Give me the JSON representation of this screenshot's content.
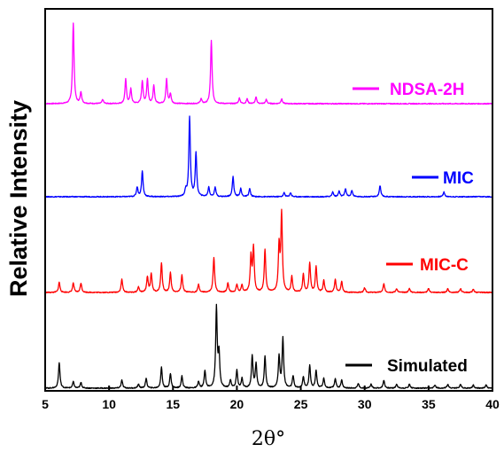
{
  "chart_data": {
    "type": "line",
    "xlabel": "2θ°",
    "ylabel": "Relative Intensity",
    "xlim": [
      5,
      40
    ],
    "x_ticks": [
      "5",
      "10",
      "15",
      "20",
      "25",
      "30",
      "35",
      "40"
    ],
    "y_ticks_shown": false,
    "grid": false,
    "legend": "right, beside each trace",
    "series": [
      {
        "name": "NDSA-2H",
        "color": "#ff00ff",
        "peaks": [
          [
            7.2,
            1.0
          ],
          [
            7.8,
            0.14
          ],
          [
            9.5,
            0.05
          ],
          [
            11.3,
            0.3
          ],
          [
            11.7,
            0.18
          ],
          [
            12.6,
            0.28
          ],
          [
            13.0,
            0.3
          ],
          [
            13.5,
            0.22
          ],
          [
            14.5,
            0.3
          ],
          [
            14.8,
            0.12
          ],
          [
            17.2,
            0.06
          ],
          [
            18.0,
            0.78
          ],
          [
            20.2,
            0.07
          ],
          [
            20.8,
            0.06
          ],
          [
            21.5,
            0.08
          ],
          [
            22.3,
            0.05
          ],
          [
            23.5,
            0.06
          ]
        ]
      },
      {
        "name": "MIC",
        "color": "#0000ff",
        "peaks": [
          [
            12.2,
            0.12
          ],
          [
            12.6,
            0.32
          ],
          [
            16.0,
            0.08
          ],
          [
            16.3,
            1.0
          ],
          [
            16.8,
            0.55
          ],
          [
            17.8,
            0.12
          ],
          [
            18.3,
            0.12
          ],
          [
            19.7,
            0.25
          ],
          [
            20.3,
            0.1
          ],
          [
            21.0,
            0.1
          ],
          [
            23.7,
            0.05
          ],
          [
            24.2,
            0.05
          ],
          [
            27.5,
            0.06
          ],
          [
            28.0,
            0.07
          ],
          [
            28.5,
            0.1
          ],
          [
            29.0,
            0.08
          ],
          [
            31.2,
            0.14
          ],
          [
            36.2,
            0.06
          ]
        ]
      },
      {
        "name": "MIC-C",
        "color": "#ff0000",
        "peaks": [
          [
            6.1,
            0.13
          ],
          [
            7.2,
            0.12
          ],
          [
            7.8,
            0.12
          ],
          [
            11.0,
            0.17
          ],
          [
            12.3,
            0.07
          ],
          [
            13.0,
            0.2
          ],
          [
            13.3,
            0.24
          ],
          [
            14.1,
            0.38
          ],
          [
            14.8,
            0.25
          ],
          [
            15.7,
            0.22
          ],
          [
            17.0,
            0.1
          ],
          [
            18.2,
            0.45
          ],
          [
            19.3,
            0.12
          ],
          [
            20.0,
            0.1
          ],
          [
            20.4,
            0.09
          ],
          [
            21.1,
            0.45
          ],
          [
            21.3,
            0.57
          ],
          [
            22.2,
            0.55
          ],
          [
            23.3,
            0.58
          ],
          [
            23.5,
            1.0
          ],
          [
            24.3,
            0.2
          ],
          [
            25.2,
            0.23
          ],
          [
            25.7,
            0.38
          ],
          [
            26.2,
            0.33
          ],
          [
            26.8,
            0.15
          ],
          [
            27.7,
            0.17
          ],
          [
            28.2,
            0.14
          ],
          [
            30.0,
            0.06
          ],
          [
            31.5,
            0.11
          ],
          [
            32.5,
            0.05
          ],
          [
            33.5,
            0.05
          ],
          [
            35.0,
            0.05
          ],
          [
            36.5,
            0.05
          ],
          [
            37.5,
            0.05
          ],
          [
            38.5,
            0.04
          ]
        ]
      },
      {
        "name": "Simulated",
        "color": "#000000",
        "peaks": [
          [
            6.1,
            0.32
          ],
          [
            7.2,
            0.08
          ],
          [
            7.8,
            0.07
          ],
          [
            11.0,
            0.1
          ],
          [
            12.3,
            0.05
          ],
          [
            12.9,
            0.12
          ],
          [
            14.1,
            0.26
          ],
          [
            14.8,
            0.18
          ],
          [
            15.7,
            0.15
          ],
          [
            17.0,
            0.08
          ],
          [
            17.5,
            0.22
          ],
          [
            18.4,
            1.0
          ],
          [
            18.6,
            0.42
          ],
          [
            19.5,
            0.1
          ],
          [
            20.0,
            0.22
          ],
          [
            20.4,
            0.12
          ],
          [
            21.2,
            0.4
          ],
          [
            21.5,
            0.3
          ],
          [
            22.2,
            0.4
          ],
          [
            23.3,
            0.4
          ],
          [
            23.6,
            0.62
          ],
          [
            24.4,
            0.15
          ],
          [
            25.2,
            0.14
          ],
          [
            25.7,
            0.28
          ],
          [
            26.2,
            0.22
          ],
          [
            26.8,
            0.12
          ],
          [
            27.7,
            0.12
          ],
          [
            28.2,
            0.1
          ],
          [
            29.5,
            0.06
          ],
          [
            30.5,
            0.05
          ],
          [
            31.5,
            0.1
          ],
          [
            32.5,
            0.05
          ],
          [
            33.5,
            0.05
          ],
          [
            35.5,
            0.04
          ],
          [
            36.5,
            0.05
          ],
          [
            37.5,
            0.05
          ],
          [
            38.5,
            0.04
          ],
          [
            39.5,
            0.04
          ]
        ]
      }
    ]
  }
}
